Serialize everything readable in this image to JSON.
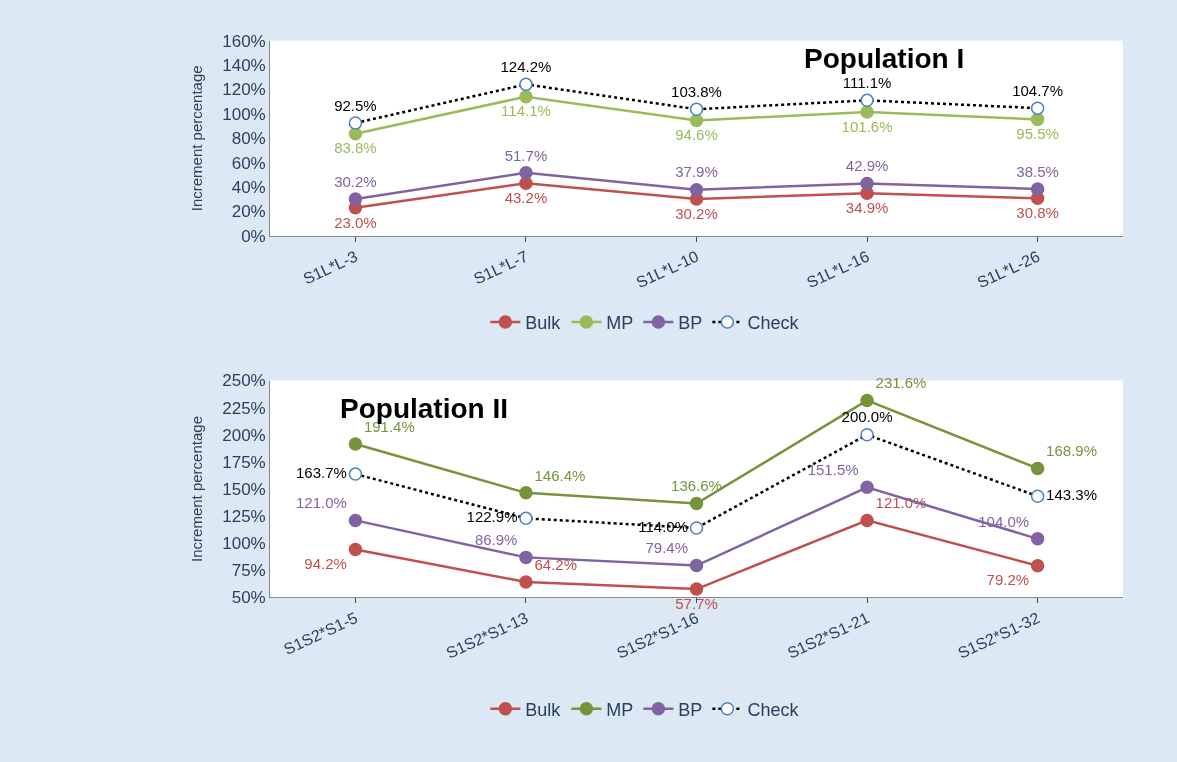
{
  "chart_data": [
    {
      "type": "line",
      "title": "Population I",
      "ylabel": "Increment percentage",
      "categories": [
        "S1L*L-3",
        "S1L*L-7",
        "S1L*L-10",
        "S1L*L-16",
        "S1L*L-26"
      ],
      "ylim": [
        0,
        160
      ],
      "yticks": [
        {
          "value": 0,
          "label": "0%"
        },
        {
          "value": 20,
          "label": "20%"
        },
        {
          "value": 40,
          "label": "40%"
        },
        {
          "value": 60,
          "label": "60%"
        },
        {
          "value": 80,
          "label": "80%"
        },
        {
          "value": 100,
          "label": "100%"
        },
        {
          "value": 120,
          "label": "120%"
        },
        {
          "value": 140,
          "label": "140%"
        },
        {
          "value": 160,
          "label": "160%"
        }
      ],
      "legend": "bottom",
      "marker": "circle",
      "series": [
        {
          "name": "Bulk",
          "color": "#c0504d",
          "values": [
            23.0,
            43.2,
            30.2,
            34.9,
            30.8
          ],
          "value_labels": [
            "23.0%",
            "43.2%",
            "30.2%",
            "34.9%",
            "30.8%"
          ]
        },
        {
          "name": "MP",
          "color": "#9bbb59",
          "values": [
            83.8,
            114.1,
            94.6,
            101.6,
            95.5
          ],
          "value_labels": [
            "83.8%",
            "114.1%",
            "94.6%",
            "101.6%",
            "95.5%"
          ]
        },
        {
          "name": "BP",
          "color": "#8064a2",
          "values": [
            30.2,
            51.7,
            37.9,
            42.9,
            38.5
          ],
          "value_labels": [
            "30.2%",
            "51.7%",
            "37.9%",
            "42.9%",
            "38.5%"
          ]
        },
        {
          "name": "Check",
          "color": "#000000",
          "line_style": "dotted",
          "values": [
            92.5,
            124.2,
            103.8,
            111.1,
            104.7
          ],
          "value_labels": [
            "92.5%",
            "124.2%",
            "103.8%",
            "111.1%",
            "104.7%"
          ]
        }
      ]
    },
    {
      "type": "line",
      "title": "Population II",
      "ylabel": "Increment percentage",
      "categories": [
        "S1S2*S1-5",
        "S1S2*S1-13",
        "S1S2*S1-16",
        "S1S2*S1-21",
        "S1S2*S1-32"
      ],
      "ylim": [
        50,
        250
      ],
      "yticks": [
        {
          "value": 50,
          "label": "50%"
        },
        {
          "value": 75,
          "label": "75%"
        },
        {
          "value": 100,
          "label": "100%"
        },
        {
          "value": 125,
          "label": "125%"
        },
        {
          "value": 150,
          "label": "150%"
        },
        {
          "value": 175,
          "label": "175%"
        },
        {
          "value": 200,
          "label": "200%"
        },
        {
          "value": 225,
          "label": "225%"
        },
        {
          "value": 250,
          "label": "250%"
        }
      ],
      "legend": "bottom",
      "marker": "circle",
      "series": [
        {
          "name": "Bulk",
          "color": "#c0504d",
          "values": [
            94.2,
            64.2,
            57.7,
            121.0,
            79.2
          ],
          "value_labels": [
            "94.2%",
            "64.2%",
            "57.7%",
            "121.0%",
            "79.2%"
          ]
        },
        {
          "name": "MP",
          "color": "#77933c",
          "values": [
            191.4,
            146.4,
            136.6,
            231.6,
            168.9
          ],
          "value_labels": [
            "191.4%",
            "146.4%",
            "136.6%",
            "231.6%",
            "168.9%"
          ]
        },
        {
          "name": "BP",
          "color": "#8064a2",
          "values": [
            121.0,
            86.9,
            79.4,
            151.5,
            104.0
          ],
          "value_labels": [
            "121.0%",
            "86.9%",
            "79.4%",
            "151.5%",
            "104.0%"
          ]
        },
        {
          "name": "Check",
          "color": "#000000",
          "line_style": "dotted",
          "values": [
            163.7,
            122.9,
            114.0,
            200.0,
            143.3
          ],
          "value_labels": [
            "163.7%",
            "122.9%",
            "114.0%",
            "200.0%",
            "143.3%"
          ]
        }
      ]
    }
  ]
}
